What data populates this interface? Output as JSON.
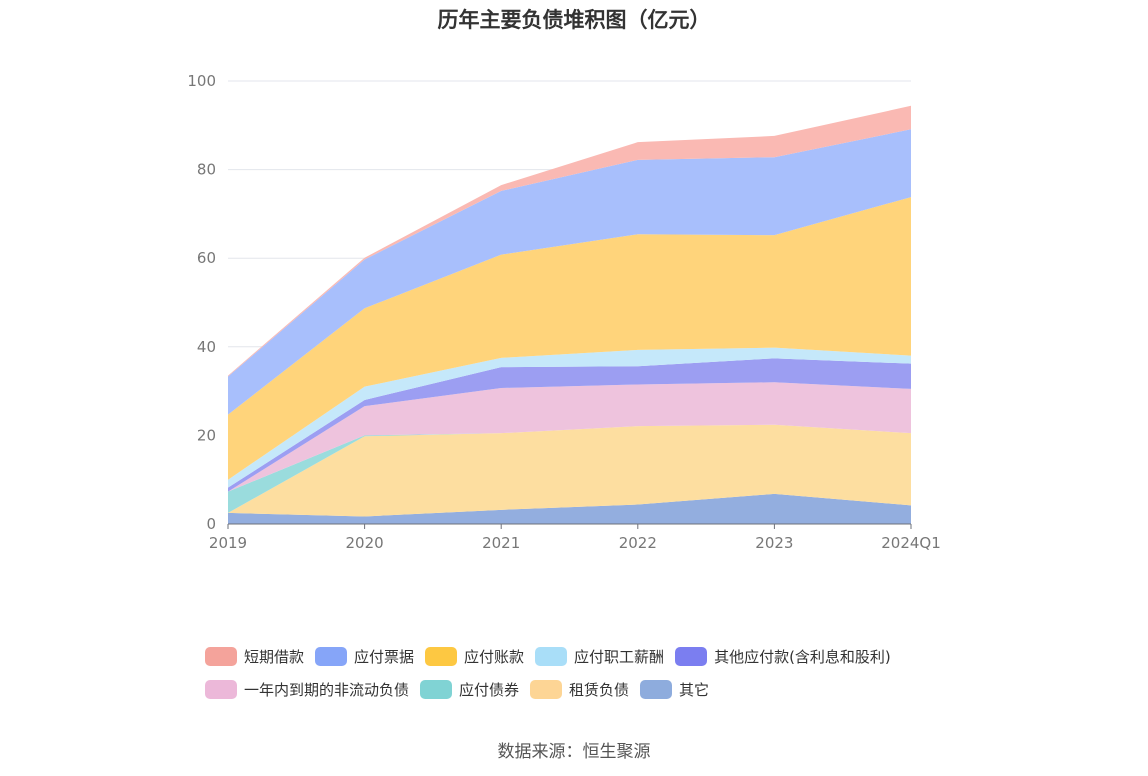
{
  "chart_data": {
    "type": "area",
    "stacked": true,
    "title": "历年主要负债堆积图（亿元）",
    "x": [
      "2019",
      "2020",
      "2021",
      "2022",
      "2023",
      "2024Q1"
    ],
    "ylim": [
      0,
      100
    ],
    "yticks": [
      0,
      20,
      40,
      60,
      80,
      100
    ],
    "grid": true,
    "legend_position": "bottom",
    "series": [
      {
        "name": "其它",
        "color": "#93aedf",
        "values": [
          2.5,
          1.7,
          3.2,
          4.4,
          6.8,
          4.2
        ]
      },
      {
        "name": "租赁负债",
        "color": "#fddea0",
        "values": [
          0,
          18.1,
          17.3,
          17.7,
          15.6,
          16.3
        ]
      },
      {
        "name": "应付债券",
        "color": "#9adcdd",
        "values": [
          4.8,
          0.2,
          0,
          0,
          0,
          0
        ]
      },
      {
        "name": "一年内到期的非流动负债",
        "color": "#eec3dd",
        "values": [
          0,
          6.6,
          10.2,
          9.4,
          9.6,
          10.0
        ]
      },
      {
        "name": "其他应付款(含利息和股利)",
        "color": "#9c9ef2",
        "values": [
          0.9,
          1.4,
          4.7,
          4.1,
          5.4,
          5.7
        ]
      },
      {
        "name": "应付职工薪酬",
        "color": "#c5e8fa",
        "values": [
          1.8,
          3.0,
          2.1,
          3.7,
          2.4,
          1.8
        ]
      },
      {
        "name": "应付账款",
        "color": "#ffd47b",
        "values": [
          14.7,
          17.7,
          23.3,
          26.1,
          25.4,
          35.8
        ]
      },
      {
        "name": "应付票据",
        "color": "#a8bffc",
        "values": [
          8.6,
          11.0,
          14.4,
          16.8,
          17.6,
          15.3
        ]
      },
      {
        "name": "短期借款",
        "color": "#fab9b3",
        "values": [
          0.2,
          0.4,
          1.3,
          4.0,
          4.8,
          5.3
        ]
      }
    ],
    "legend": [
      {
        "name": "短期借款",
        "color": "#f4a39b"
      },
      {
        "name": "应付票据",
        "color": "#86a5f8"
      },
      {
        "name": "应付账款",
        "color": "#fdc842"
      },
      {
        "name": "应付职工薪酬",
        "color": "#a9def8"
      },
      {
        "name": "其他应付款(含利息和股利)",
        "color": "#7b7ef0"
      },
      {
        "name": "一年内到期的非流动负债",
        "color": "#ecb8d9"
      },
      {
        "name": "应付债券",
        "color": "#80d3d4"
      },
      {
        "name": "租赁负债",
        "color": "#fdd595"
      },
      {
        "name": "其它",
        "color": "#8eacdd"
      }
    ]
  },
  "source": "数据来源：恒生聚源"
}
